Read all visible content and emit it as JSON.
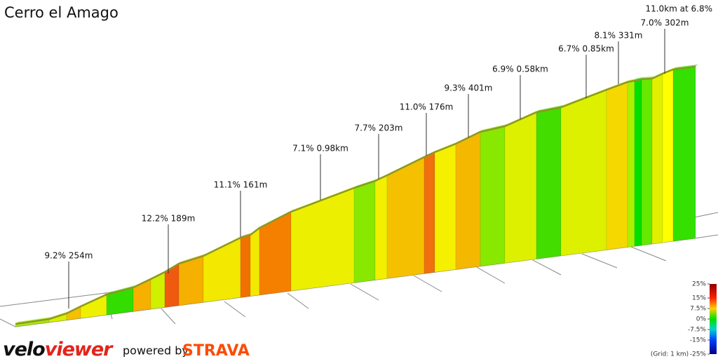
{
  "chart_data": {
    "type": "elevation-profile",
    "title": "Cerro el Amago",
    "summary": "11.0km at 6.8%",
    "annotations": [
      "9.2% 254m",
      "12.2% 189m",
      "11.1% 161m",
      "7.1% 0.98km",
      "7.7% 203m",
      "11.0% 176m",
      "9.3% 401m",
      "6.9% 0.58km",
      "6.7% 0.85km",
      "8.1% 331m",
      "7.0% 302m"
    ],
    "segments": [
      {
        "gradient": 4,
        "color": "#a8e800"
      },
      {
        "gradient": 6,
        "color": "#d8f000"
      },
      {
        "gradient": 9,
        "color": "#f5c000"
      },
      {
        "gradient": 7,
        "color": "#eef000"
      },
      {
        "gradient": 3,
        "color": "#33dd00"
      },
      {
        "gradient": 10,
        "color": "#f5b000"
      },
      {
        "gradient": 6,
        "color": "#d0f000"
      },
      {
        "gradient": 13,
        "color": "#f05a10"
      },
      {
        "gradient": 10,
        "color": "#f5b000"
      },
      {
        "gradient": 8,
        "color": "#f2e800"
      },
      {
        "gradient": 12,
        "color": "#f07000"
      },
      {
        "gradient": 8,
        "color": "#f2e800"
      },
      {
        "gradient": 11,
        "color": "#f58000"
      },
      {
        "gradient": 7,
        "color": "#ecf000"
      },
      {
        "gradient": 5,
        "color": "#88e800"
      },
      {
        "gradient": 7,
        "color": "#f2f000"
      },
      {
        "gradient": 9,
        "color": "#f5c000"
      },
      {
        "gradient": 12,
        "color": "#f07010"
      },
      {
        "gradient": 8,
        "color": "#f5f000"
      },
      {
        "gradient": 10,
        "color": "#f5b800"
      },
      {
        "gradient": 5,
        "color": "#88e800"
      },
      {
        "gradient": 7,
        "color": "#ddf000"
      },
      {
        "gradient": 3,
        "color": "#44dd00"
      },
      {
        "gradient": 7,
        "color": "#ddf000"
      },
      {
        "gradient": 9,
        "color": "#f5d800"
      },
      {
        "gradient": 6,
        "color": "#aaf000"
      },
      {
        "gradient": 1,
        "color": "#00e000"
      },
      {
        "gradient": 4,
        "color": "#66e800"
      },
      {
        "gradient": 7,
        "color": "#e0f000"
      },
      {
        "gradient": 8,
        "color": "#ffff00"
      },
      {
        "gradient": 3,
        "color": "#33e000"
      }
    ],
    "colorscale_lim": [
      -25,
      25
    ],
    "colorscale_ticks": [
      {
        "value": 25,
        "label": "25%"
      },
      {
        "value": 15,
        "label": "15%"
      },
      {
        "value": 7.5,
        "label": "7.5%"
      },
      {
        "value": 0,
        "label": "0%"
      },
      {
        "value": -7.5,
        "label": "-7.5%"
      },
      {
        "value": -15,
        "label": "-15%"
      },
      {
        "value": -25,
        "label": "-25%"
      }
    ],
    "grid_note": "(Grid: 1 km)",
    "brand_velo": "velo",
    "brand_viewer": "viewer",
    "powered_by": "powered by",
    "strava": "STRAVA"
  }
}
